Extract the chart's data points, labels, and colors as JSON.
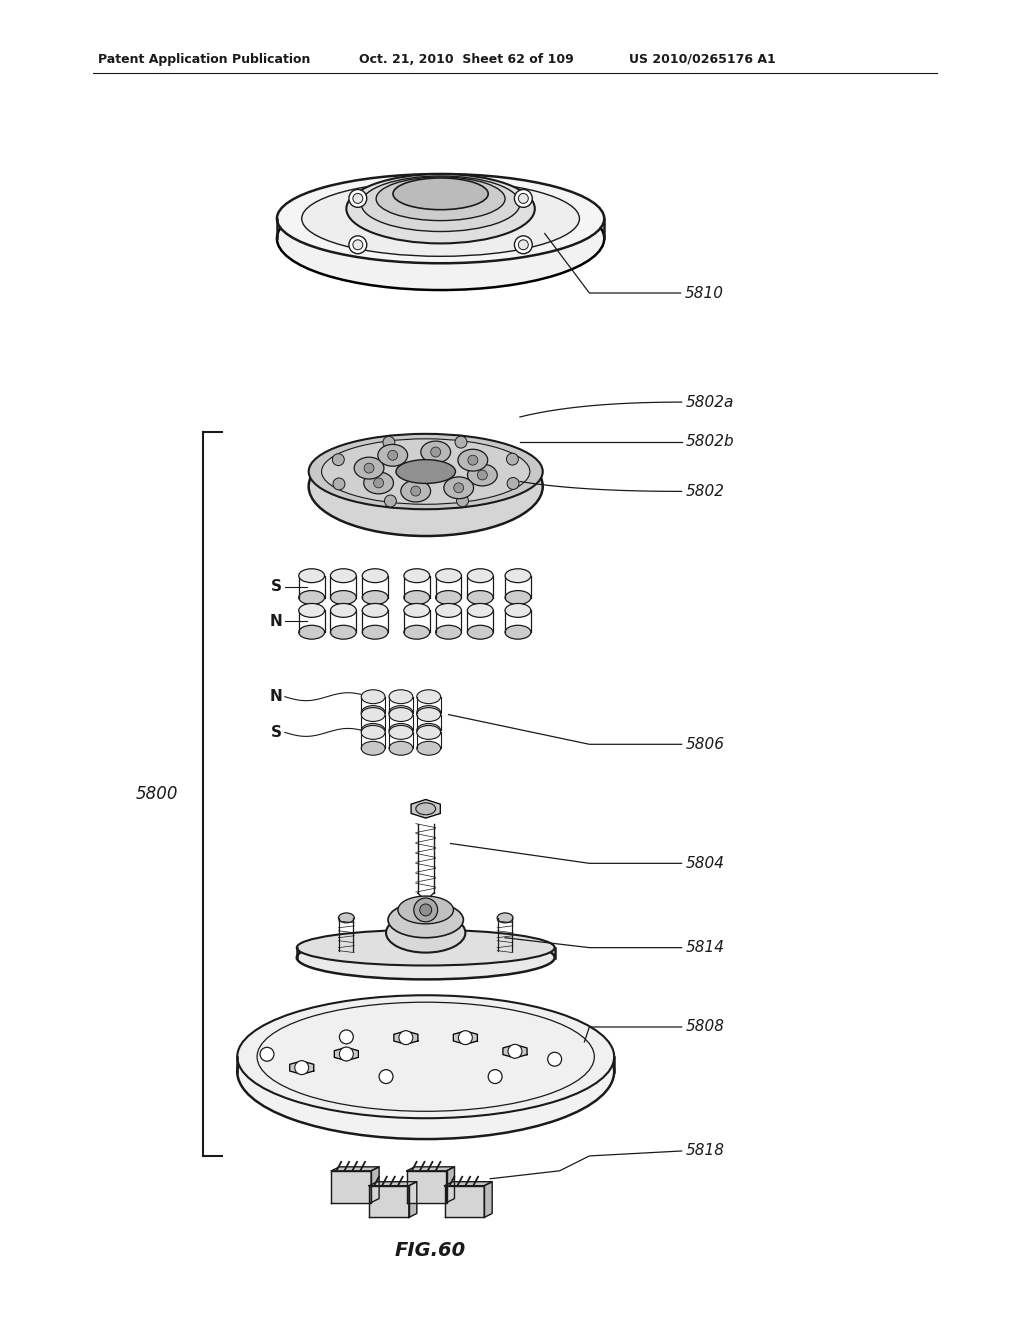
{
  "bg_color": "#ffffff",
  "line_color": "#1a1a1a",
  "header_left": "Patent Application Publication",
  "header_mid": "Oct. 21, 2010  Sheet 62 of 109",
  "header_right": "US 2010/0265176 A1",
  "figure_label": "FIG.60",
  "lbl_5800": "5800",
  "lbl_5810": "5810",
  "lbl_5802": "5802",
  "lbl_5802b": "5802b",
  "lbl_5802a": "5802a",
  "lbl_5806": "5806",
  "lbl_5804": "5804",
  "lbl_5814": "5814",
  "lbl_5808": "5808",
  "lbl_5818": "5818"
}
